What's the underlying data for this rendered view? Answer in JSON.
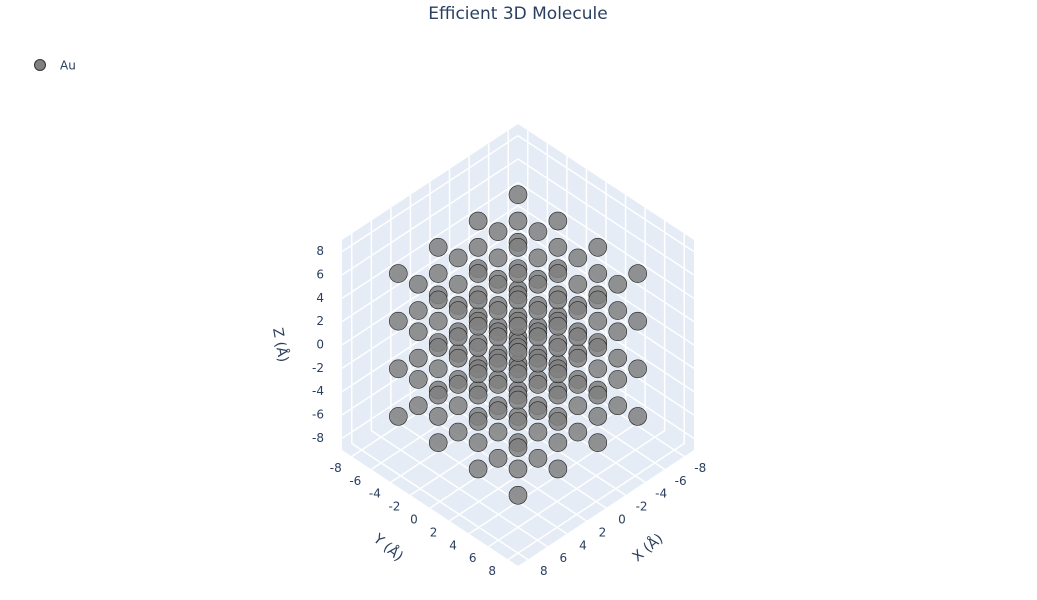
{
  "chart_data": {
    "type": "scatter3d",
    "title": "Efficient 3D Molecule",
    "x_label": "X (Å)",
    "y_label": "Y (Å)",
    "z_label": "Z (Å)",
    "legend": "top-left",
    "xlim": [
      -9,
      9
    ],
    "ylim": [
      -9,
      9
    ],
    "zlim": [
      -9,
      9
    ],
    "xticks": [
      -8,
      -6,
      -4,
      -2,
      0,
      2,
      4,
      6,
      8
    ],
    "yticks": [
      -8,
      -6,
      -4,
      -2,
      0,
      2,
      4,
      6,
      8
    ],
    "zticks": [
      -8,
      -6,
      -4,
      -2,
      0,
      2,
      4,
      6,
      8
    ],
    "series": [
      {
        "name": "Au",
        "color": "#808080",
        "x": [
          -6.12,
          -6.12,
          -6.12,
          -6.12,
          -4.08,
          -4.08,
          -4.08,
          -2.04,
          -2.04,
          -2.04,
          -2.04,
          0,
          0,
          0,
          2.04,
          2.04,
          2.04,
          2.04,
          4.08,
          4.08,
          4.08,
          6.12,
          6.12,
          6.12,
          6.12,
          -6.12,
          -6.12,
          -6.12,
          -4.08,
          -4.08,
          -4.08,
          -4.08,
          -2.04,
          -2.04,
          -2.04,
          0,
          0,
          0,
          0,
          2.04,
          2.04,
          2.04,
          4.08,
          4.08,
          4.08,
          4.08,
          6.12,
          6.12,
          6.12,
          -6.12,
          -6.12,
          -6.12,
          -6.12,
          -4.08,
          -4.08,
          -4.08,
          -2.04,
          -2.04,
          -2.04,
          -2.04,
          0,
          0,
          0,
          2.04,
          2.04,
          2.04,
          2.04,
          4.08,
          4.08,
          4.08,
          6.12,
          6.12,
          6.12,
          6.12,
          -6.12,
          -6.12,
          -6.12,
          -4.08,
          -4.08,
          -4.08,
          -4.08,
          -2.04,
          -2.04,
          -2.04,
          0,
          0,
          0,
          0,
          2.04,
          2.04,
          2.04,
          4.08,
          4.08,
          4.08,
          4.08,
          6.12,
          6.12,
          6.12,
          -6.12,
          -6.12,
          -6.12,
          -6.12,
          -4.08,
          -4.08,
          -4.08,
          -2.04,
          -2.04,
          -2.04,
          -2.04,
          0,
          0,
          0,
          2.04,
          2.04,
          2.04,
          2.04,
          4.08,
          4.08,
          4.08,
          6.12,
          6.12,
          6.12,
          6.12,
          -6.12,
          -6.12,
          -6.12,
          -4.08,
          -4.08,
          -4.08,
          -4.08,
          -2.04,
          -2.04,
          -2.04,
          0,
          0,
          0,
          0,
          2.04,
          2.04,
          2.04,
          4.08,
          4.08,
          4.08,
          4.08,
          6.12,
          6.12,
          6.12,
          -6.12,
          -6.12,
          -6.12,
          -6.12,
          -4.08,
          -4.08,
          -4.08,
          -2.04,
          -2.04,
          -2.04,
          -2.04,
          0,
          0,
          0,
          2.04,
          2.04,
          2.04,
          2.04,
          4.08,
          4.08,
          4.08,
          6.12,
          6.12,
          6.12,
          6.12
        ],
        "y": [
          -6.12,
          -2.04,
          2.04,
          6.12,
          -4.08,
          0,
          4.08,
          -6.12,
          -2.04,
          2.04,
          6.12,
          -4.08,
          0,
          4.08,
          -6.12,
          -2.04,
          2.04,
          6.12,
          -4.08,
          0,
          4.08,
          -6.12,
          -2.04,
          2.04,
          6.12,
          -4.08,
          0,
          4.08,
          -6.12,
          -2.04,
          2.04,
          6.12,
          -4.08,
          0,
          4.08,
          -6.12,
          -2.04,
          2.04,
          6.12,
          -4.08,
          0,
          4.08,
          -6.12,
          -2.04,
          2.04,
          6.12,
          -4.08,
          0,
          4.08,
          -6.12,
          -2.04,
          2.04,
          6.12,
          -4.08,
          0,
          4.08,
          -6.12,
          -2.04,
          2.04,
          6.12,
          -4.08,
          0,
          4.08,
          -6.12,
          -2.04,
          2.04,
          6.12,
          -4.08,
          0,
          4.08,
          -6.12,
          -2.04,
          2.04,
          6.12,
          -4.08,
          0,
          4.08,
          -6.12,
          -2.04,
          2.04,
          6.12,
          -4.08,
          0,
          4.08,
          -6.12,
          -2.04,
          2.04,
          6.12,
          -4.08,
          0,
          4.08,
          -6.12,
          -2.04,
          2.04,
          6.12,
          -4.08,
          0,
          4.08,
          -6.12,
          -2.04,
          2.04,
          6.12,
          -4.08,
          0,
          4.08,
          -6.12,
          -2.04,
          2.04,
          6.12,
          -4.08,
          0,
          4.08,
          -6.12,
          -2.04,
          2.04,
          6.12,
          -4.08,
          0,
          4.08,
          -6.12,
          -2.04,
          2.04,
          6.12,
          -4.08,
          0,
          4.08,
          -6.12,
          -2.04,
          2.04,
          6.12,
          -4.08,
          0,
          4.08,
          -6.12,
          -2.04,
          2.04,
          6.12,
          -4.08,
          0,
          4.08,
          -6.12,
          -2.04,
          2.04,
          6.12,
          -4.08,
          0,
          4.08,
          -6.12,
          -2.04,
          2.04,
          6.12,
          -4.08,
          0,
          4.08,
          -6.12,
          -2.04,
          2.04,
          6.12,
          -4.08,
          0,
          4.08,
          -6.12,
          -2.04,
          2.04,
          6.12,
          -4.08,
          0,
          4.08,
          -6.12,
          -2.04,
          2.04,
          6.12
        ],
        "z": [
          -6.12,
          -6.12,
          -6.12,
          -6.12,
          -6.12,
          -6.12,
          -6.12,
          -6.12,
          -6.12,
          -6.12,
          -6.12,
          -6.12,
          -6.12,
          -6.12,
          -6.12,
          -6.12,
          -6.12,
          -6.12,
          -6.12,
          -6.12,
          -6.12,
          -6.12,
          -6.12,
          -6.12,
          -6.12,
          -4.08,
          -4.08,
          -4.08,
          -4.08,
          -4.08,
          -4.08,
          -4.08,
          -4.08,
          -4.08,
          -4.08,
          -4.08,
          -4.08,
          -4.08,
          -4.08,
          -4.08,
          -4.08,
          -4.08,
          -4.08,
          -4.08,
          -4.08,
          -4.08,
          -4.08,
          -4.08,
          -4.08,
          -2.04,
          -2.04,
          -2.04,
          -2.04,
          -2.04,
          -2.04,
          -2.04,
          -2.04,
          -2.04,
          -2.04,
          -2.04,
          -2.04,
          -2.04,
          -2.04,
          -2.04,
          -2.04,
          -2.04,
          -2.04,
          -2.04,
          -2.04,
          -2.04,
          -2.04,
          -2.04,
          -2.04,
          -2.04,
          0,
          0,
          0,
          0,
          0,
          0,
          0,
          0,
          0,
          0,
          0,
          0,
          0,
          0,
          0,
          0,
          0,
          0,
          0,
          0,
          0,
          0,
          0,
          0,
          2.04,
          2.04,
          2.04,
          2.04,
          2.04,
          2.04,
          2.04,
          2.04,
          2.04,
          2.04,
          2.04,
          2.04,
          2.04,
          2.04,
          2.04,
          2.04,
          2.04,
          2.04,
          2.04,
          2.04,
          2.04,
          2.04,
          2.04,
          2.04,
          2.04,
          4.08,
          4.08,
          4.08,
          4.08,
          4.08,
          4.08,
          4.08,
          4.08,
          4.08,
          4.08,
          4.08,
          4.08,
          4.08,
          4.08,
          4.08,
          4.08,
          4.08,
          4.08,
          4.08,
          4.08,
          4.08,
          4.08,
          4.08,
          4.08,
          6.12,
          6.12,
          6.12,
          6.12,
          6.12,
          6.12,
          6.12,
          6.12,
          6.12,
          6.12,
          6.12,
          6.12,
          6.12,
          6.12,
          6.12,
          6.12,
          6.12,
          6.12,
          6.12,
          6.12,
          6.12,
          6.12,
          6.12,
          6.12,
          6.12
        ]
      }
    ]
  }
}
